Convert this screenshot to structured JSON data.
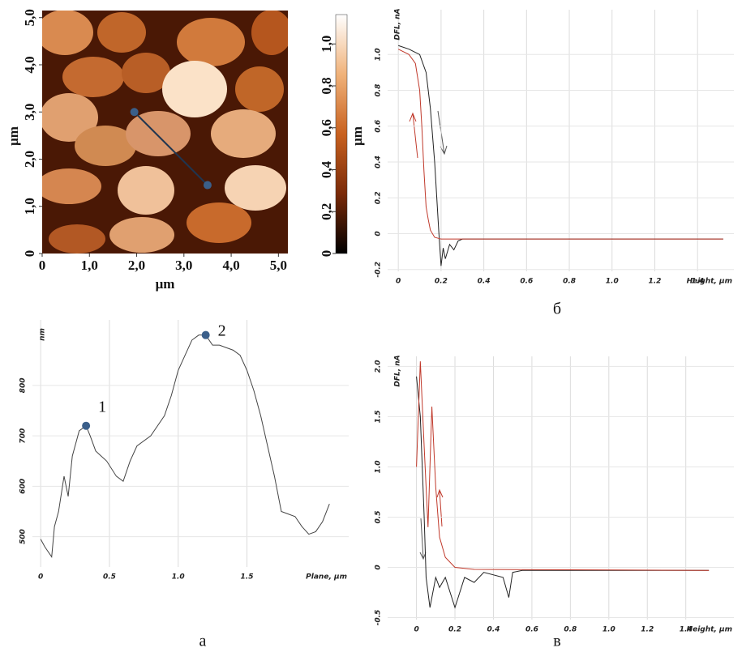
{
  "chart_data": [
    {
      "type": "image",
      "xlabel": "μm",
      "ylabel": "μm",
      "xlim": [
        0,
        5.2
      ],
      "ylim": [
        0,
        5.15
      ],
      "xticks": [
        0,
        {
          "value": 1,
          "label": "1,0"
        },
        {
          "value": 2,
          "label": "2,0"
        },
        {
          "value": 3,
          "label": "3,0"
        },
        {
          "value": 4,
          "label": "4,0"
        },
        {
          "value": 5,
          "label": "5,0"
        }
      ],
      "yticks": [
        0,
        {
          "value": 1,
          "label": "1,0"
        },
        {
          "value": 2,
          "label": "2,0"
        },
        {
          "value": 3,
          "label": "3,0"
        },
        {
          "value": 4,
          "label": "4,0"
        },
        {
          "value": 5,
          "label": "5,0"
        }
      ],
      "profile": {
        "x": [
          1.95,
          3.5
        ],
        "y": [
          3.0,
          1.45
        ],
        "color": "#1f3550"
      },
      "colorbar": {
        "label": "μm",
        "lim": [
          0,
          1.14
        ],
        "colors": [
          "#000000",
          "#7a2a08",
          "#c8611f",
          "#f0b27a",
          "#ffffff"
        ],
        "ticks": [
          0,
          {
            "value": 0.2,
            "label": "0,2"
          },
          {
            "value": 0.4,
            "label": "0,4"
          },
          {
            "value": 0.6,
            "label": "0,6"
          },
          {
            "value": 0.8,
            "label": "0,8"
          },
          {
            "value": 1,
            "label": "1,0"
          }
        ]
      }
    },
    {
      "type": "line",
      "xlabel": "Height, μm",
      "ylabel": "DFL, nA",
      "caption": "б",
      "xlim": [
        -0.05,
        1.57
      ],
      "ylim": [
        -0.21,
        1.25
      ],
      "xticks": [
        0,
        0.2,
        0.4,
        0.6,
        0.8,
        {
          "value": 1,
          "label": "1.0"
        },
        1.2,
        1.4
      ],
      "yticks": [
        -0.2,
        0,
        0.2,
        0.4,
        0.6,
        0.8,
        {
          "value": 1,
          "label": "1.0"
        }
      ],
      "series": [
        {
          "color": "#222222",
          "x": [
            0,
            0.05,
            0.1,
            0.13,
            0.15,
            0.17,
            0.18,
            0.19,
            0.2,
            0.21,
            0.22,
            0.24,
            0.26,
            0.28,
            0.3,
            0.6,
            1.0,
            1.52
          ],
          "values": [
            1.05,
            1.03,
            1.0,
            0.9,
            0.7,
            0.4,
            0.2,
            0.0,
            -0.18,
            -0.08,
            -0.14,
            -0.06,
            -0.09,
            -0.04,
            -0.03,
            -0.03,
            -0.03,
            -0.03
          ]
        },
        {
          "color": "#c0392b",
          "x": [
            0,
            0.05,
            0.08,
            0.1,
            0.11,
            0.12,
            0.13,
            0.14,
            0.15,
            0.17,
            0.2,
            0.6,
            1.0,
            1.52
          ],
          "values": [
            1.03,
            1.0,
            0.95,
            0.8,
            0.6,
            0.35,
            0.15,
            0.08,
            0.02,
            -0.02,
            -0.03,
            -0.03,
            -0.03,
            -0.03
          ]
        }
      ]
    },
    {
      "type": "line",
      "xlabel": "Plane, μm",
      "ylabel": "nm",
      "caption": "а",
      "xlim": [
        -0.06,
        2.24
      ],
      "ylim": [
        440,
        930
      ],
      "xticks": [
        0,
        0.5,
        {
          "value": 1,
          "label": "1.0"
        },
        1.5
      ],
      "yticks": [
        500,
        600,
        700,
        800
      ],
      "series": [
        {
          "color": "#444444",
          "x": [
            0,
            0.03,
            0.08,
            0.1,
            0.13,
            0.17,
            0.2,
            0.23,
            0.28,
            0.33,
            0.36,
            0.4,
            0.48,
            0.55,
            0.6,
            0.65,
            0.7,
            0.8,
            0.9,
            0.95,
            1.0,
            1.05,
            1.1,
            1.15,
            1.2,
            1.25,
            1.3,
            1.35,
            1.4,
            1.45,
            1.5,
            1.55,
            1.6,
            1.65,
            1.7,
            1.75,
            1.8,
            1.85,
            1.9,
            1.95,
            2.0,
            2.05,
            2.1
          ],
          "values": [
            495,
            480,
            460,
            520,
            550,
            620,
            580,
            660,
            710,
            720,
            700,
            670,
            650,
            620,
            610,
            650,
            680,
            700,
            740,
            780,
            830,
            860,
            890,
            900,
            900,
            880,
            880,
            875,
            870,
            860,
            830,
            790,
            740,
            680,
            620,
            550,
            545,
            540,
            520,
            505,
            510,
            530,
            565
          ]
        }
      ],
      "markers": {
        "x": [
          0.33,
          1.2
        ],
        "y": [
          720,
          900
        ],
        "labels": [
          "1",
          "2"
        ],
        "color": "#3b5f8a"
      }
    },
    {
      "type": "line",
      "xlabel": "Height, μm",
      "ylabel": "DFL, nA",
      "caption": "в",
      "xlim": [
        -0.15,
        1.65
      ],
      "ylim": [
        -0.52,
        2.1
      ],
      "xticks": [
        0,
        0.2,
        0.4,
        0.6,
        0.8,
        {
          "value": 1,
          "label": "1.0"
        },
        1.2,
        1.4
      ],
      "yticks": [
        -0.5,
        0,
        0.5,
        {
          "value": 1,
          "label": "1.0"
        },
        1.5,
        {
          "value": 2,
          "label": "2.0"
        }
      ],
      "series": [
        {
          "color": "#222222",
          "x": [
            0,
            0.02,
            0.04,
            0.05,
            0.07,
            0.1,
            0.12,
            0.15,
            0.2,
            0.25,
            0.3,
            0.35,
            0.45,
            0.48,
            0.5,
            0.55,
            1.52
          ],
          "values": [
            1.9,
            1.5,
            0.5,
            -0.1,
            -0.4,
            -0.1,
            -0.2,
            -0.1,
            -0.4,
            -0.1,
            -0.15,
            -0.05,
            -0.1,
            -0.3,
            -0.05,
            -0.03,
            -0.03
          ]
        },
        {
          "color": "#c0392b",
          "x": [
            0,
            0.02,
            0.04,
            0.06,
            0.08,
            0.1,
            0.12,
            0.15,
            0.2,
            0.3,
            1.52
          ],
          "values": [
            1.0,
            2.05,
            1.2,
            0.4,
            1.6,
            0.8,
            0.3,
            0.1,
            0.0,
            -0.02,
            -0.03
          ]
        }
      ]
    }
  ]
}
